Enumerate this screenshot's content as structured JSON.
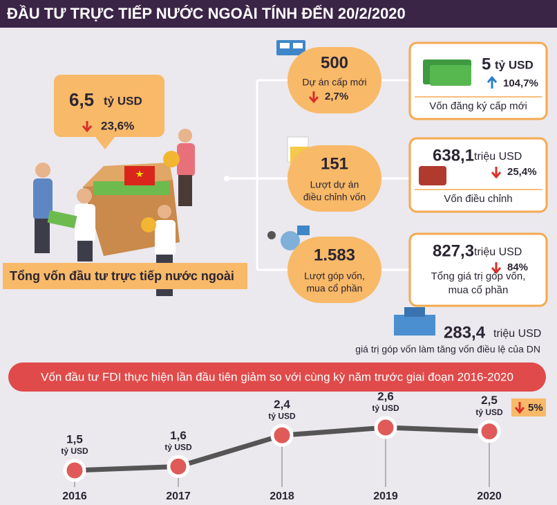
{
  "header": {
    "title": "ĐẦU TƯ TRỰC TIẾP NƯỚC NGOÀI TÍNH ĐẾN 20/2/2020"
  },
  "total": {
    "value": "6,5",
    "unit": "tỷ USD",
    "change": "23,6%",
    "label": "Tổng vốn đầu tư trực tiếp nước ngoài"
  },
  "items": [
    {
      "count": "500",
      "count_label": [
        "Dự án cấp mới"
      ],
      "count_change": "2,7%",
      "amount": "5",
      "unit": "tỷ USD",
      "change": "104,7%",
      "desc": [
        "Vốn đăng ký cấp mới"
      ]
    },
    {
      "count": "151",
      "count_label": [
        "Lượt dự án",
        "điều chỉnh vốn"
      ],
      "amount": "638,1",
      "unit": "triệu USD",
      "change": "25,4%",
      "desc": [
        "Vốn điều chỉnh"
      ]
    },
    {
      "count": "1.583",
      "count_label": [
        "Lượt góp vốn,",
        "mua cổ phần"
      ],
      "amount": "827,3",
      "unit": "triệu USD",
      "change": "84%",
      "desc": [
        "Tổng giá trị góp vốn,",
        "mua cổ phần"
      ]
    }
  ],
  "extra": {
    "amount": "283,4",
    "unit": "triệu USD",
    "desc": "giá trị góp vốn làm tăng vốn điều lệ của DN"
  },
  "banner": "Vốn đầu tư FDI thực hiện lần đầu tiên giảm so với cùng kỳ năm trước giai đoạn 2016-2020",
  "chart_data": {
    "type": "line",
    "categories": [
      "2016",
      "2017",
      "2018",
      "2019",
      "2020"
    ],
    "values": [
      1.5,
      1.6,
      2.4,
      2.6,
      2.5
    ],
    "value_labels": [
      "1,5",
      "1,6",
      "2,4",
      "2,6",
      "2,5"
    ],
    "unit_label": "tỷ USD",
    "change_label": "5%",
    "color": "#e05a5a"
  }
}
